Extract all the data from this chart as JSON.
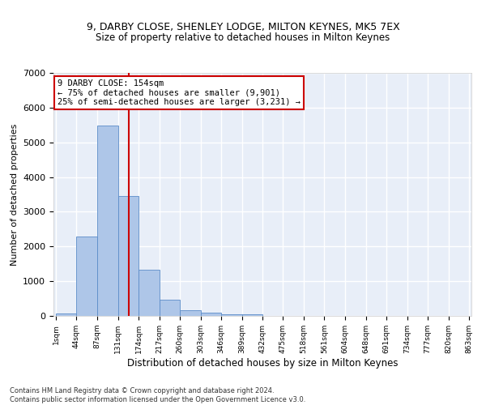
{
  "title1": "9, DARBY CLOSE, SHENLEY LODGE, MILTON KEYNES, MK5 7EX",
  "title2": "Size of property relative to detached houses in Milton Keynes",
  "xlabel": "Distribution of detached houses by size in Milton Keynes",
  "ylabel": "Number of detached properties",
  "footer1": "Contains HM Land Registry data © Crown copyright and database right 2024.",
  "footer2": "Contains public sector information licensed under the Open Government Licence v3.0.",
  "annotation_line1": "9 DARBY CLOSE: 154sqm",
  "annotation_line2": "← 75% of detached houses are smaller (9,901)",
  "annotation_line3": "25% of semi-detached houses are larger (3,231) →",
  "bar_color": "#aec6e8",
  "bar_edge_color": "#5b8cc8",
  "bar_line_color": "#cc0000",
  "annotation_box_color": "#cc0000",
  "background_color": "#e8eef8",
  "grid_color": "#ffffff",
  "property_size_sqm": 154,
  "bin_edges": [
    1,
    44,
    87,
    131,
    174,
    217,
    260,
    303,
    346,
    389,
    432,
    475,
    518,
    561,
    604,
    648,
    691,
    734,
    777,
    820,
    863
  ],
  "bar_heights": [
    75,
    2280,
    5480,
    3450,
    1320,
    470,
    165,
    90,
    55,
    40,
    0,
    0,
    0,
    0,
    0,
    0,
    0,
    0,
    0,
    0
  ],
  "ylim": [
    0,
    7000
  ],
  "yticks": [
    0,
    1000,
    2000,
    3000,
    4000,
    5000,
    6000,
    7000
  ],
  "tick_labels": [
    "1sqm",
    "44sqm",
    "87sqm",
    "131sqm",
    "174sqm",
    "217sqm",
    "260sqm",
    "303sqm",
    "346sqm",
    "389sqm",
    "432sqm",
    "475sqm",
    "518sqm",
    "561sqm",
    "604sqm",
    "648sqm",
    "691sqm",
    "734sqm",
    "777sqm",
    "820sqm",
    "863sqm"
  ]
}
